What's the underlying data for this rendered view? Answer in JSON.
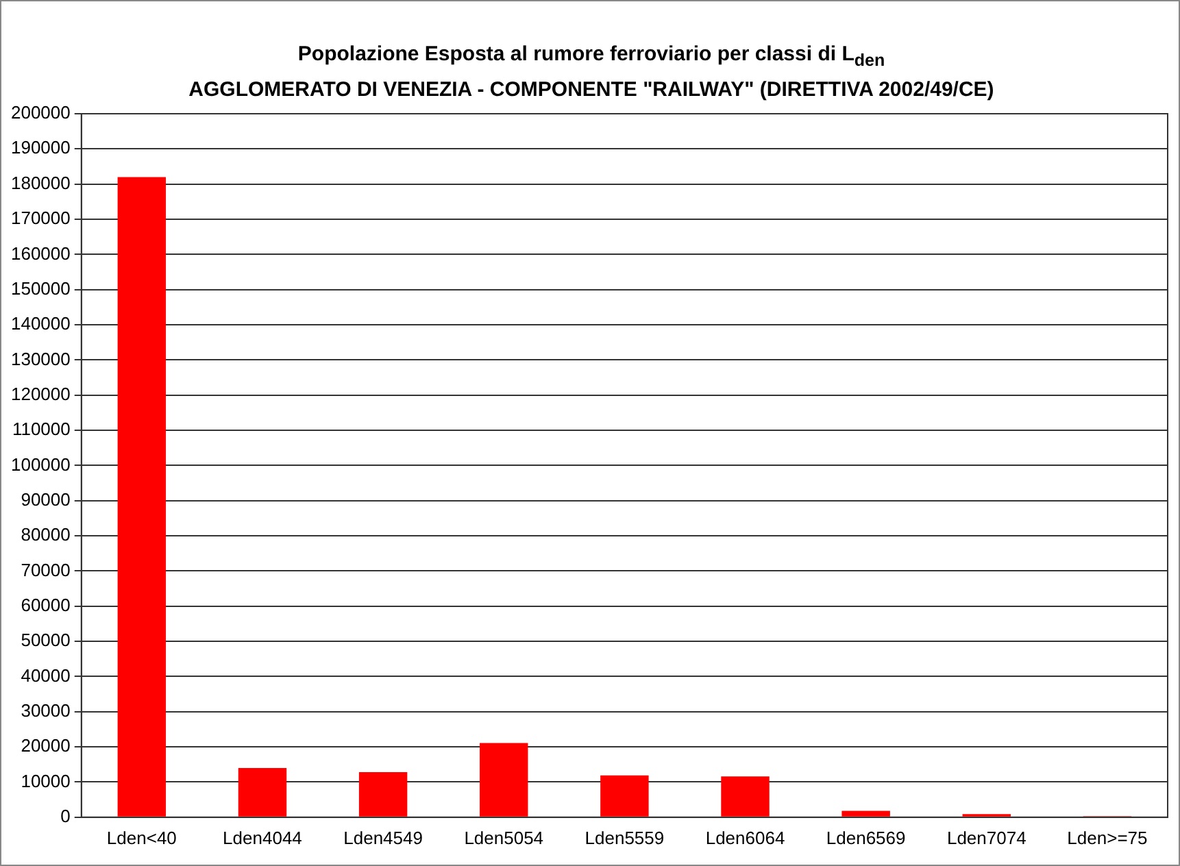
{
  "chart_data": {
    "type": "bar",
    "title": "Popolazione Esposta al rumore ferroviario per classi di L$_{den}$",
    "subtitle": "AGGLOMERATO DI VENEZIA - COMPONENTE \"RAILWAY\" (DIRETTIVA 2002/49/CE)",
    "categories": [
      "Lden<40",
      "Lden4044",
      "Lden4549",
      "Lden5054",
      "Lden5559",
      "Lden6064",
      "Lden6569",
      "Lden7074",
      "Lden>=75"
    ],
    "values": [
      182000,
      14000,
      12800,
      21100,
      11900,
      11600,
      1800,
      900,
      300
    ],
    "color": "#ff0000",
    "ylim": [
      0,
      200000
    ],
    "yticks": [
      0,
      10000,
      20000,
      30000,
      40000,
      50000,
      60000,
      70000,
      80000,
      90000,
      100000,
      110000,
      120000,
      130000,
      140000,
      150000,
      160000,
      170000,
      180000,
      190000,
      200000
    ],
    "grid": "y",
    "legend": false
  }
}
